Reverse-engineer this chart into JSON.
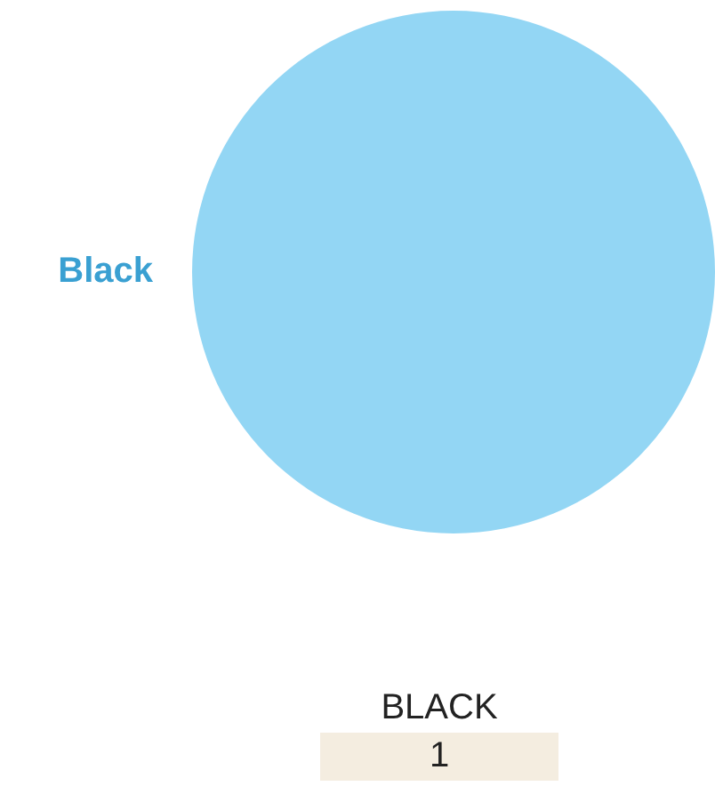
{
  "chart_data": {
    "type": "pie",
    "categories": [
      "Black"
    ],
    "values": [
      1
    ],
    "colors": [
      "#93d6f4"
    ],
    "data_labels": true,
    "annotations": [
      "BLACK"
    ]
  }
}
